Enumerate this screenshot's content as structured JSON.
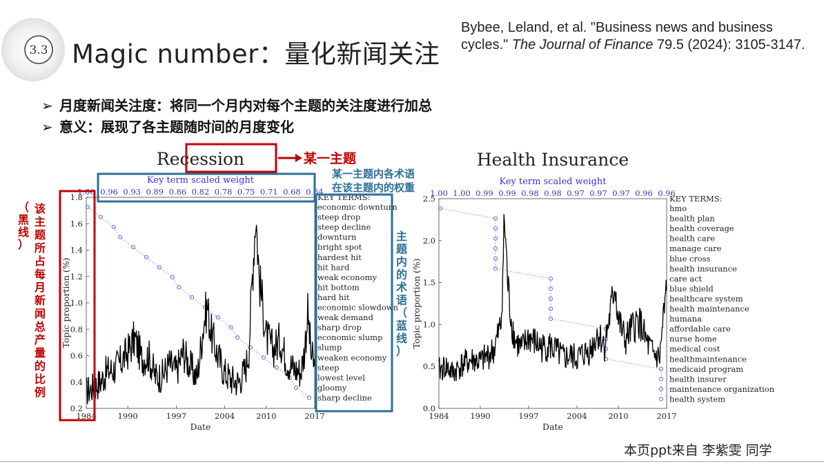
{
  "header": {
    "section_number": "3.3",
    "title": "Magic number：量化新闻关注",
    "citation": {
      "authors": "Bybee, Leland, et al. \"Business news and business cycles.\" ",
      "journal": "The Journal of Finance",
      "details": " 79.5 (2024): 3105-3147."
    }
  },
  "bullets": [
    {
      "marker": "➢",
      "text": "月度新闻关注度：将同一个月内对每个主题的关注度进行加总"
    },
    {
      "marker": "➢",
      "text": "意义：展现了各主题随时间的月度变化"
    }
  ],
  "annotations": {
    "topic": "某一主题",
    "weights": [
      "某一主题内各术语",
      "在该主题内的权重"
    ],
    "terms_vertical": "主题内的术语（蓝线）",
    "proportion_vertical_main": "该主题所占每月新闻总产量的比例",
    "proportion_vertical_sub": "（黑线）"
  },
  "credit": "本页ppt来自 李紫雯 同学",
  "colors": {
    "annotation_red": "#c00000",
    "annotation_blue": "#2a6f97",
    "topic_line": "#000000",
    "weight_line": "#6e6ee6"
  },
  "chart_data": [
    {
      "type": "line",
      "title": "Recession",
      "subtitle": "Key term scaled weight",
      "xlabel": "Date",
      "ylabel": "Topic proportion (%)",
      "xticks": [
        "1984",
        "1990",
        "1997",
        "2004",
        "2010",
        "2017"
      ],
      "yticks": [
        "0.2",
        "0.4",
        "0.6",
        "0.8",
        "1.0",
        "1.2",
        "1.4",
        "1.6",
        "1.8"
      ],
      "ylim": [
        0.2,
        1.8
      ],
      "xlim": [
        1984,
        2017
      ],
      "top_weights": [
        "1.00",
        "0.96",
        "0.93",
        "0.89",
        "0.86",
        "0.82",
        "0.78",
        "0.75",
        "0.71",
        "0.68",
        "0.64"
      ],
      "key_terms_header": "KEY TERMS:",
      "key_terms": [
        "economic downturn",
        "steep drop",
        "steep decline",
        "downturn",
        "bright spot",
        "hardest hit",
        "hit hard",
        "weak economy",
        "hit bottom",
        "hard hit",
        "economic slowdown",
        "weak demand",
        "sharp drop",
        "economic slump",
        "slump",
        "weaken economy",
        "steep",
        "lowest level",
        "gloomy",
        "sharp decline"
      ],
      "weight_points": [
        1.0,
        0.98,
        0.96,
        0.95,
        0.93,
        0.91,
        0.89,
        0.87,
        0.86,
        0.84,
        0.82,
        0.8,
        0.78,
        0.77,
        0.75,
        0.73,
        0.71,
        0.69,
        0.68,
        0.66
      ],
      "series": [
        {
          "name": "",
          "points": [
            [
              1984.0,
              0.33
            ],
            [
              1985.0,
              0.36
            ],
            [
              1986.0,
              0.4
            ],
            [
              1987.0,
              0.48
            ],
            [
              1988.0,
              0.5
            ],
            [
              1989.0,
              0.55
            ],
            [
              1990.0,
              0.63
            ],
            [
              1991.0,
              0.73
            ],
            [
              1992.0,
              0.58
            ],
            [
              1993.0,
              0.6
            ],
            [
              1994.0,
              0.44
            ],
            [
              1995.0,
              0.45
            ],
            [
              1996.0,
              0.54
            ],
            [
              1997.0,
              0.48
            ],
            [
              1998.0,
              0.63
            ],
            [
              1999.0,
              0.52
            ],
            [
              2000.0,
              0.43
            ],
            [
              2001.0,
              0.86
            ],
            [
              2001.5,
              0.98
            ],
            [
              2002.0,
              0.78
            ],
            [
              2003.0,
              0.6
            ],
            [
              2004.0,
              0.47
            ],
            [
              2005.0,
              0.42
            ],
            [
              2006.0,
              0.4
            ],
            [
              2007.0,
              0.5
            ],
            [
              2007.5,
              0.65
            ],
            [
              2008.0,
              1.22
            ],
            [
              2008.5,
              1.69
            ],
            [
              2009.0,
              1.18
            ],
            [
              2009.5,
              0.98
            ],
            [
              2010.0,
              0.74
            ],
            [
              2011.0,
              0.65
            ],
            [
              2012.0,
              0.72
            ],
            [
              2013.0,
              0.56
            ],
            [
              2014.0,
              0.5
            ],
            [
              2015.0,
              0.48
            ],
            [
              2015.5,
              0.63
            ],
            [
              2016.0,
              0.92
            ],
            [
              2016.5,
              0.6
            ],
            [
              2017.0,
              0.52
            ]
          ]
        }
      ]
    },
    {
      "type": "line",
      "title": "Health Insurance",
      "subtitle": "Key term scaled weight",
      "xlabel": "Date",
      "ylabel": "Topic proportion (%)",
      "xticks": [
        "1984",
        "1990",
        "1997",
        "2004",
        "2010",
        "2017"
      ],
      "yticks": [
        "0.0",
        "0.5",
        "1.0",
        "1.5",
        "2.0",
        "2.5"
      ],
      "ylim": [
        0.0,
        2.5
      ],
      "xlim": [
        1984,
        2017
      ],
      "top_weights": [
        "1.00",
        "1.00",
        "0.99",
        "0.99",
        "0.98",
        "0.98",
        "0.97",
        "0.97",
        "0.97",
        "0.96",
        "0.96"
      ],
      "key_terms_header": "KEY TERMS:",
      "key_terms": [
        "hmo",
        "health plan",
        "health coverage",
        "health care",
        "manage care",
        "blue cross",
        "health insurance",
        "care act",
        "blue shield",
        "healthcare system",
        "health maintenance",
        "humana",
        "affordable care",
        "nurse home",
        "medical cost",
        "healthmaintenance",
        "medicaid program",
        "health insurer",
        "maintenance organization",
        "health system"
      ],
      "weight_points": [
        1.0,
        0.99,
        0.99,
        0.99,
        0.99,
        0.99,
        0.99,
        0.98,
        0.98,
        0.98,
        0.98,
        0.98,
        0.97,
        0.97,
        0.97,
        0.97,
        0.96,
        0.96,
        0.96,
        0.96
      ],
      "series": [
        {
          "name": "",
          "points": [
            [
              1984.0,
              0.45
            ],
            [
              1985.0,
              0.5
            ],
            [
              1986.0,
              0.42
            ],
            [
              1987.0,
              0.5
            ],
            [
              1988.0,
              0.55
            ],
            [
              1989.0,
              0.58
            ],
            [
              1990.0,
              0.55
            ],
            [
              1991.0,
              0.62
            ],
            [
              1992.0,
              0.7
            ],
            [
              1993.0,
              1.0
            ],
            [
              1993.5,
              2.25
            ],
            [
              1994.0,
              1.45
            ],
            [
              1994.5,
              1.05
            ],
            [
              1995.0,
              0.82
            ],
            [
              1996.0,
              0.7
            ],
            [
              1997.0,
              0.85
            ],
            [
              1998.0,
              0.78
            ],
            [
              1999.0,
              0.72
            ],
            [
              2000.0,
              0.75
            ],
            [
              2001.0,
              0.68
            ],
            [
              2002.0,
              0.6
            ],
            [
              2003.0,
              0.62
            ],
            [
              2004.0,
              0.6
            ],
            [
              2005.0,
              0.65
            ],
            [
              2006.0,
              0.7
            ],
            [
              2007.0,
              0.9
            ],
            [
              2008.0,
              0.75
            ],
            [
              2009.0,
              1.2
            ],
            [
              2009.5,
              1.5
            ],
            [
              2010.0,
              1.05
            ],
            [
              2011.0,
              0.8
            ],
            [
              2012.0,
              0.95
            ],
            [
              2013.0,
              1.05
            ],
            [
              2014.0,
              0.8
            ],
            [
              2015.0,
              0.65
            ],
            [
              2016.0,
              0.6
            ],
            [
              2016.5,
              1.05
            ],
            [
              2017.0,
              1.4
            ]
          ]
        }
      ]
    }
  ]
}
